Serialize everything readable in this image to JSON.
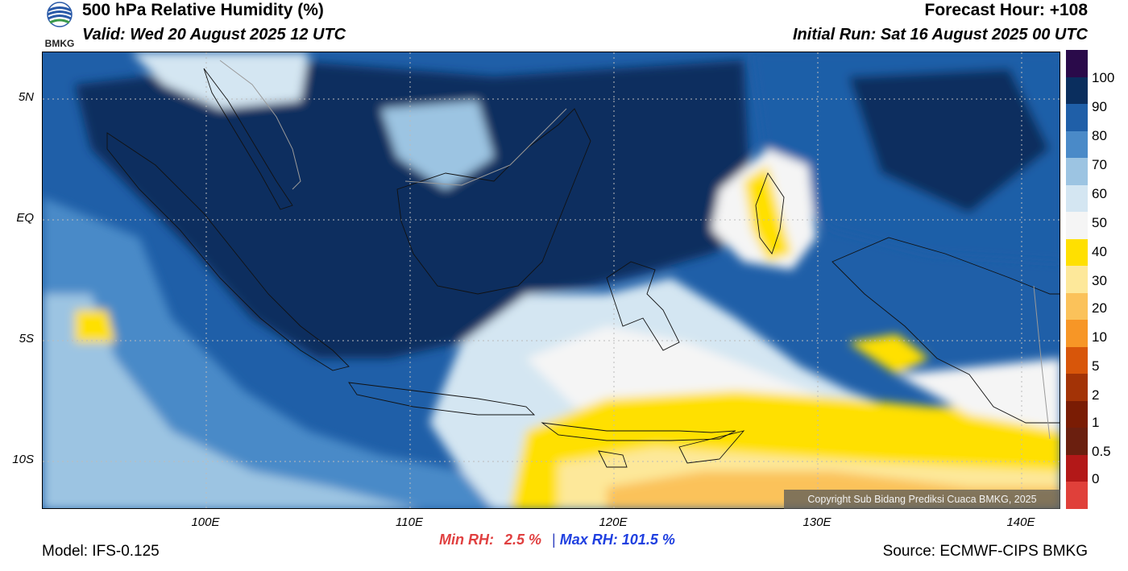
{
  "header": {
    "title": "500 hPa Relative Humidity (%)",
    "valid": "Valid: Wed 20 August 2025 12 UTC",
    "forecast_hour": "Forecast Hour: +108",
    "initial_run": "Initial Run: Sat 16 August 2025 00 UTC",
    "logo_text": "BMKG"
  },
  "map": {
    "lat_labels": [
      "5N",
      "EQ",
      "5S",
      "10S"
    ],
    "lon_labels": [
      "100E",
      "110E",
      "120E",
      "130E",
      "140E"
    ],
    "copyright": "Copyright Sub Bidang Prediksi Cuaca BMKG, 2025"
  },
  "colorbar": {
    "labels": [
      "100",
      "90",
      "80",
      "70",
      "60",
      "50",
      "40",
      "30",
      "20",
      "10",
      "5",
      "2",
      "1",
      "0.5",
      "0"
    ],
    "colors": [
      "#2a0a4a",
      "#0a2e5e",
      "#1f5fa8",
      "#4a8ac8",
      "#9cc4e2",
      "#d4e6f2",
      "#f5f5f5",
      "#ffe000",
      "#fde89a",
      "#fbc25a",
      "#f79626",
      "#d8560a",
      "#a33306",
      "#7a1c04",
      "#6b1f0f",
      "#b31818",
      "#e0403a"
    ]
  },
  "stats": {
    "min_label": "Min RH:",
    "min_value": "2.5 %",
    "separator": "|",
    "max_label": "Max RH:",
    "max_value": "101.5 %"
  },
  "footer": {
    "model": "Model: IFS-0.125",
    "source": "Source: ECMWF-CIPS BMKG"
  }
}
